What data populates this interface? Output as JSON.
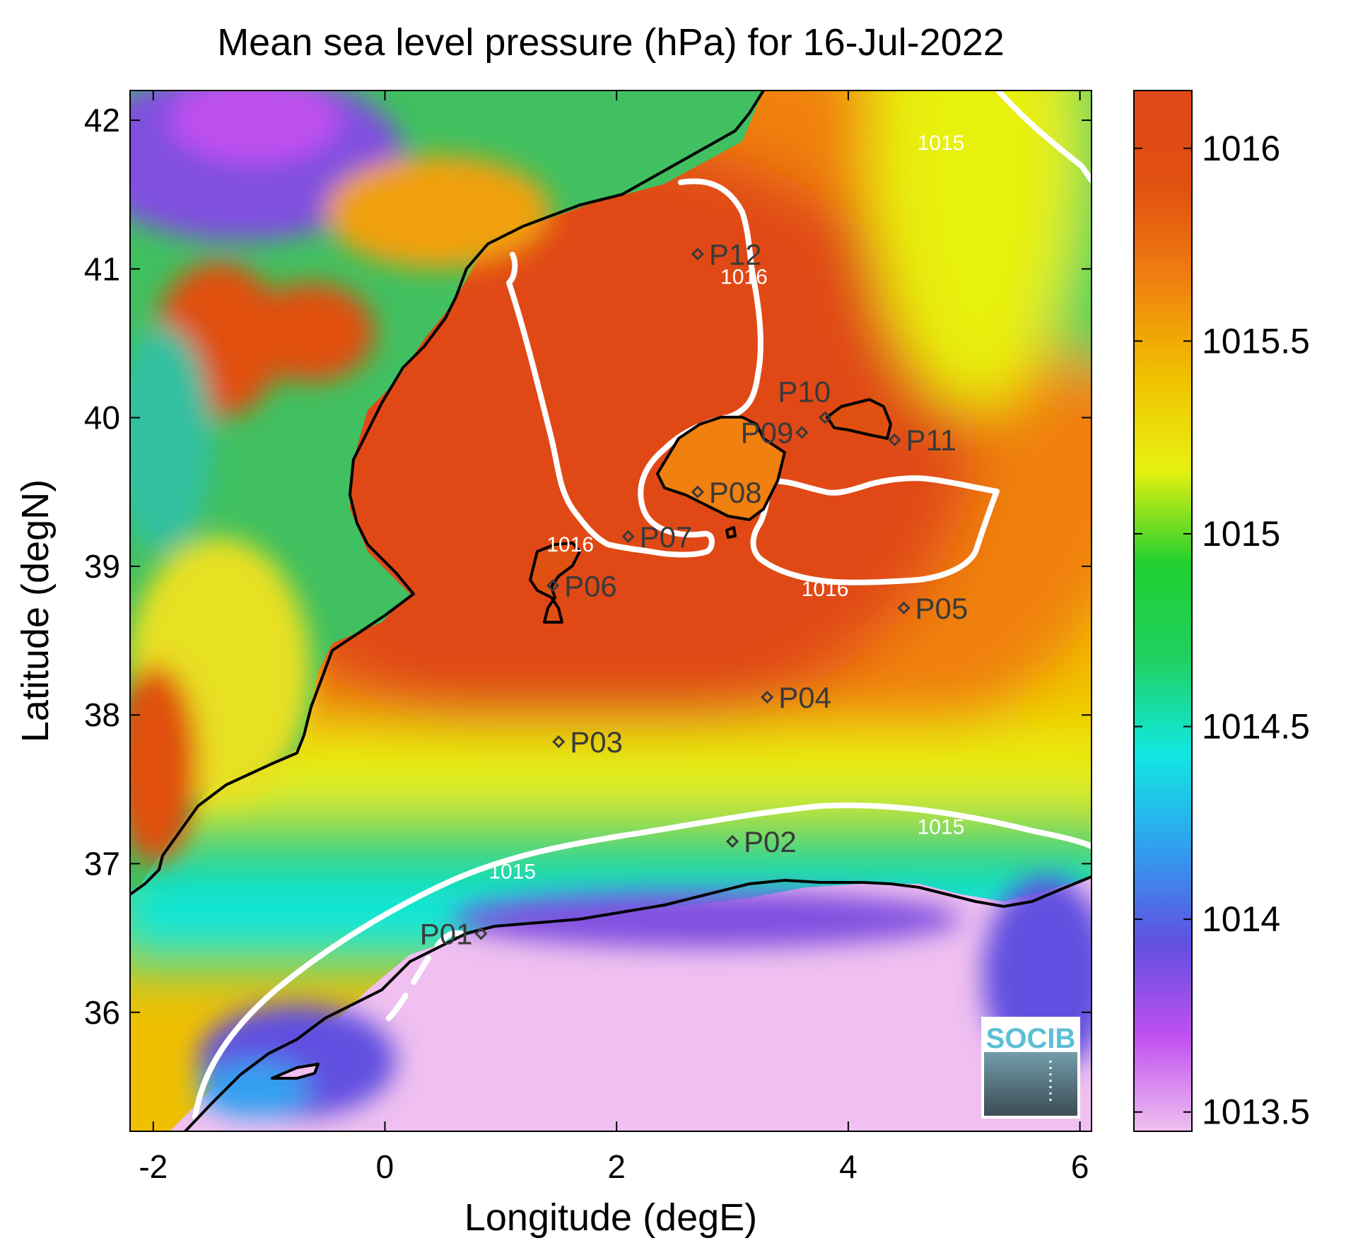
{
  "title": "Mean sea level pressure (hPa) for 16-Jul-2022",
  "x_axis": {
    "label": "Longitude (degE)",
    "range": [
      -2.2,
      6.1
    ],
    "ticks": [
      {
        "value": -2,
        "label": "-2"
      },
      {
        "value": 0,
        "label": "0"
      },
      {
        "value": 2,
        "label": "2"
      },
      {
        "value": 4,
        "label": "4"
      },
      {
        "value": 6,
        "label": "6"
      }
    ]
  },
  "y_axis": {
    "label": "Latitude (degN)",
    "range": [
      35.2,
      42.2
    ],
    "ticks": [
      {
        "value": 36,
        "label": "36"
      },
      {
        "value": 37,
        "label": "37"
      },
      {
        "value": 38,
        "label": "38"
      },
      {
        "value": 39,
        "label": "39"
      },
      {
        "value": 40,
        "label": "40"
      },
      {
        "value": 41,
        "label": "41"
      },
      {
        "value": 42,
        "label": "42"
      }
    ]
  },
  "colorbar": {
    "range": [
      1013.45,
      1016.15
    ],
    "ticks": [
      {
        "value": 1013.5,
        "label": "1013.5"
      },
      {
        "value": 1014,
        "label": "1014"
      },
      {
        "value": 1014.5,
        "label": "1014.5"
      },
      {
        "value": 1015,
        "label": "1015"
      },
      {
        "value": 1015.5,
        "label": "1015.5"
      },
      {
        "value": 1016,
        "label": "1016"
      }
    ],
    "colormap": [
      "#f0c0f0",
      "#c050f0",
      "#6050e0",
      "#30a0f0",
      "#10e8e0",
      "#20d060",
      "#20d030",
      "#e8f010",
      "#f0c000",
      "#f08010",
      "#e05010",
      "#e04818"
    ]
  },
  "contour_labels": [
    {
      "text": "1015",
      "lon": 4.8,
      "lat": 41.8
    },
    {
      "text": "1016",
      "lon": 3.1,
      "lat": 40.9
    },
    {
      "text": "1016",
      "lon": 1.6,
      "lat": 39.1
    },
    {
      "text": "1016",
      "lon": 3.8,
      "lat": 38.8
    },
    {
      "text": "1015",
      "lon": 4.8,
      "lat": 37.2
    },
    {
      "text": "1015",
      "lon": 1.1,
      "lat": 36.9
    }
  ],
  "stations": [
    {
      "id": "P01",
      "lon": 0.83,
      "lat": 36.53
    },
    {
      "id": "P02",
      "lon": 3.0,
      "lat": 37.15
    },
    {
      "id": "P03",
      "lon": 1.5,
      "lat": 37.82
    },
    {
      "id": "P04",
      "lon": 3.3,
      "lat": 38.12
    },
    {
      "id": "P05",
      "lon": 4.48,
      "lat": 38.72
    },
    {
      "id": "P06",
      "lon": 1.45,
      "lat": 38.87
    },
    {
      "id": "P07",
      "lon": 2.1,
      "lat": 39.2
    },
    {
      "id": "P08",
      "lon": 2.7,
      "lat": 39.5
    },
    {
      "id": "P09",
      "lon": 3.6,
      "lat": 39.9
    },
    {
      "id": "P10",
      "lon": 3.8,
      "lat": 40.0
    },
    {
      "id": "P11",
      "lon": 4.4,
      "lat": 39.85
    },
    {
      "id": "P12",
      "lon": 2.7,
      "lat": 41.1
    }
  ],
  "logo": {
    "text": "SOCIB"
  },
  "colors": {
    "high": "#e04818",
    "ring_orange": "#f08010",
    "ring_yellow": "#e8f010",
    "band_green": "#20d060",
    "band_cyan": "#10e8e0",
    "low": "#f0c0f0",
    "land_purple": "#8050e0",
    "contour": "#ffffff",
    "coast": "#000000"
  }
}
